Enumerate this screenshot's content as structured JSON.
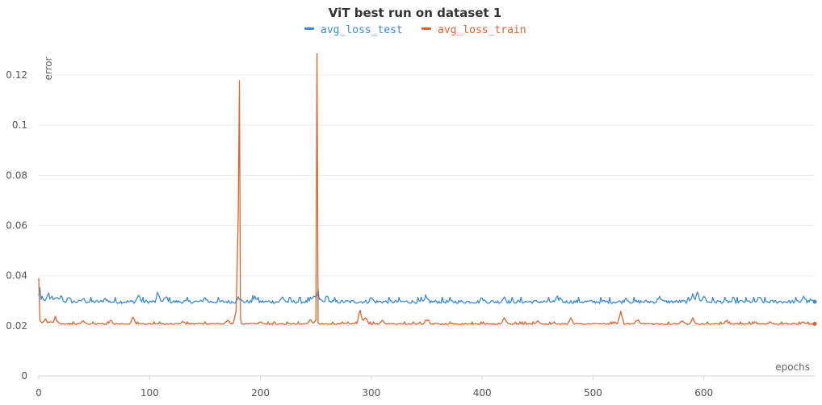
{
  "chart_data": {
    "type": "line",
    "title": "ViT best run on dataset 1",
    "xlabel": "epochs",
    "ylabel": "error",
    "xlim": [
      0,
      700
    ],
    "ylim": [
      0,
      0.13
    ],
    "x_ticks": [
      0,
      100,
      200,
      300,
      400,
      500,
      600
    ],
    "y_ticks": [
      0,
      0.02,
      0.04,
      0.06,
      0.08,
      0.1,
      0.12
    ],
    "y_tick_labels": [
      "0",
      "0.02",
      "0.04",
      "0.06",
      "0.08",
      "0.1",
      "0.12"
    ],
    "grid": true,
    "legend": "top-center",
    "series": [
      {
        "name": "avg_loss_test",
        "color": "#3b8ad8",
        "baseline": 0.0296,
        "noise": 0.0007,
        "points": [
          [
            0,
            0.032
          ],
          [
            1,
            0.0352
          ],
          [
            2,
            0.0305
          ],
          [
            3,
            0.0318
          ],
          [
            5,
            0.0301
          ],
          [
            8,
            0.0322
          ],
          [
            12,
            0.0318
          ],
          [
            16,
            0.0312
          ],
          [
            20,
            0.032
          ],
          [
            27,
            0.0312
          ],
          [
            40,
            0.0308
          ],
          [
            60,
            0.031
          ],
          [
            90,
            0.0322
          ],
          [
            108,
            0.0325
          ],
          [
            115,
            0.0316
          ],
          [
            150,
            0.0313
          ],
          [
            180,
            0.0316
          ],
          [
            181,
            0.0305
          ],
          [
            195,
            0.0318
          ],
          [
            220,
            0.0315
          ],
          [
            248,
            0.0318
          ],
          [
            252,
            0.0345
          ],
          [
            253,
            0.0305
          ],
          [
            260,
            0.0318
          ],
          [
            300,
            0.0312
          ],
          [
            350,
            0.031
          ],
          [
            400,
            0.0311
          ],
          [
            420,
            0.0315
          ],
          [
            470,
            0.0312
          ],
          [
            530,
            0.031
          ],
          [
            560,
            0.0318
          ],
          [
            590,
            0.0328
          ],
          [
            594,
            0.0335
          ],
          [
            600,
            0.0318
          ],
          [
            650,
            0.0313
          ],
          [
            690,
            0.0318
          ],
          [
            697,
            0.0302
          ],
          [
            700,
            0.0296
          ]
        ]
      },
      {
        "name": "avg_loss_train",
        "color": "#e0622a",
        "baseline": 0.0208,
        "noise": 0.0003,
        "points": [
          [
            0,
            0.039
          ],
          [
            1,
            0.0222
          ],
          [
            3,
            0.0212
          ],
          [
            6,
            0.0228
          ],
          [
            10,
            0.0215
          ],
          [
            15,
            0.0238
          ],
          [
            18,
            0.0212
          ],
          [
            40,
            0.022
          ],
          [
            65,
            0.0222
          ],
          [
            85,
            0.0235
          ],
          [
            130,
            0.0218
          ],
          [
            170,
            0.022
          ],
          [
            178,
            0.0258
          ],
          [
            181,
            0.1178
          ],
          [
            182,
            0.0228
          ],
          [
            183,
            0.0208
          ],
          [
            200,
            0.0215
          ],
          [
            245,
            0.0225
          ],
          [
            250,
            0.022
          ],
          [
            251,
            0.1285
          ],
          [
            252,
            0.0212
          ],
          [
            253,
            0.0208
          ],
          [
            290,
            0.0262
          ],
          [
            295,
            0.0232
          ],
          [
            310,
            0.0222
          ],
          [
            350,
            0.022
          ],
          [
            420,
            0.0232
          ],
          [
            450,
            0.022
          ],
          [
            480,
            0.0232
          ],
          [
            525,
            0.0258
          ],
          [
            540,
            0.022
          ],
          [
            580,
            0.0218
          ],
          [
            590,
            0.0232
          ],
          [
            620,
            0.0218
          ],
          [
            660,
            0.0215
          ],
          [
            690,
            0.0215
          ],
          [
            700,
            0.0208
          ]
        ]
      }
    ]
  }
}
